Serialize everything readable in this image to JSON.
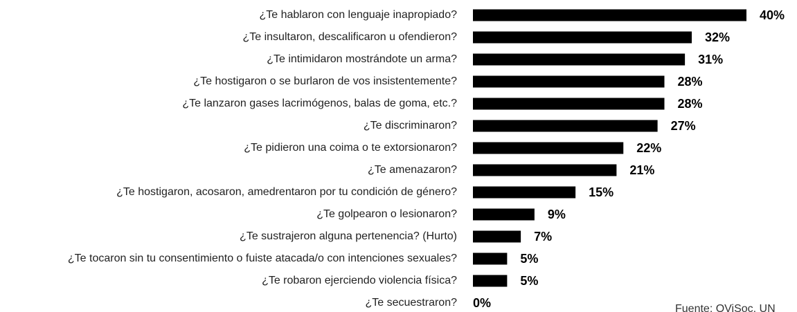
{
  "chart_data": {
    "type": "bar",
    "orientation": "horizontal",
    "color": "#000000",
    "categories": [
      "¿Te hablaron con lenguaje inapropiado?",
      "¿Te insultaron, descalificaron u ofendieron?",
      "¿Te intimidaron mostrándote un arma?",
      "¿Te hostigaron o se burlaron de vos insistentemente?",
      "¿Te lanzaron gases lacrimógenos, balas de goma, etc.?",
      "¿Te discriminaron?",
      "¿Te pidieron una coima o te extorsionaron?",
      "¿Te amenazaron?",
      "¿Te hostigaron, acosaron, amedrentaron por tu condición de género?",
      "¿Te golpearon o lesionaron?",
      "¿Te sustrajeron alguna pertenencia? (Hurto)",
      "¿Te tocaron sin tu consentimiento o fuiste atacada/o con intenciones sexuales?",
      "¿Te robaron ejerciendo violencia física?",
      "¿Te secuestraron?"
    ],
    "values": [
      40,
      32,
      31,
      28,
      28,
      27,
      22,
      21,
      15,
      9,
      7,
      5,
      5,
      0
    ],
    "value_labels": [
      "40%",
      "32%",
      "31%",
      "28%",
      "28%",
      "27%",
      "22%",
      "21%",
      "15%",
      "9%",
      "7%",
      "5%",
      "5%",
      "0%"
    ],
    "source": "Fuente: OViSoc, UN"
  }
}
